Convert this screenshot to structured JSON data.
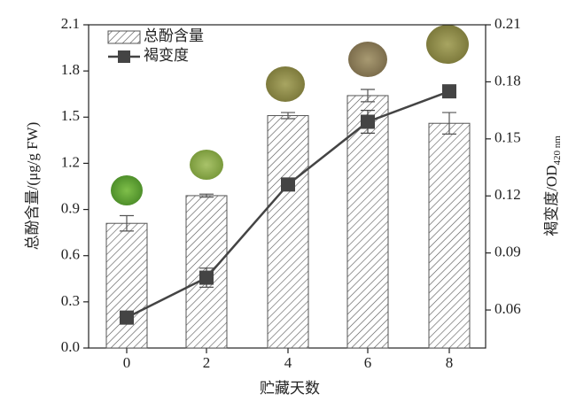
{
  "chart_data": {
    "type": "bar_line",
    "x_label": "贮藏天数",
    "y_label": "总酚含量/(μg/g FW)",
    "y2_label": "褐变度/OD",
    "y2_label_subscript": "420 nm",
    "categories": [
      "0",
      "2",
      "4",
      "6",
      "8"
    ],
    "ylim": [
      0,
      2.1
    ],
    "yticks": [
      {
        "value": 0,
        "label": "0.0"
      },
      0.3,
      0.6,
      0.9,
      1.2,
      1.5,
      1.8,
      2.1
    ],
    "y2lim": [
      0.04,
      0.21
    ],
    "y2ticks": [
      0.06,
      0.09,
      0.12,
      0.15,
      0.18,
      0.21
    ],
    "series": [
      {
        "name": "总酚含量",
        "type": "bar",
        "color": "#555555",
        "values": [
          0.81,
          0.99,
          1.51,
          1.64,
          1.46
        ],
        "errors": [
          0.05,
          0.01,
          0.02,
          0.04,
          0.07
        ]
      },
      {
        "name": "褐变度",
        "type": "line",
        "axis": "y2",
        "color": "#444444",
        "values": [
          0.056,
          0.077,
          0.126,
          0.159,
          0.175
        ],
        "errors": [
          0.002,
          0.005,
          0.002,
          0.006,
          0.002
        ]
      }
    ]
  }
}
